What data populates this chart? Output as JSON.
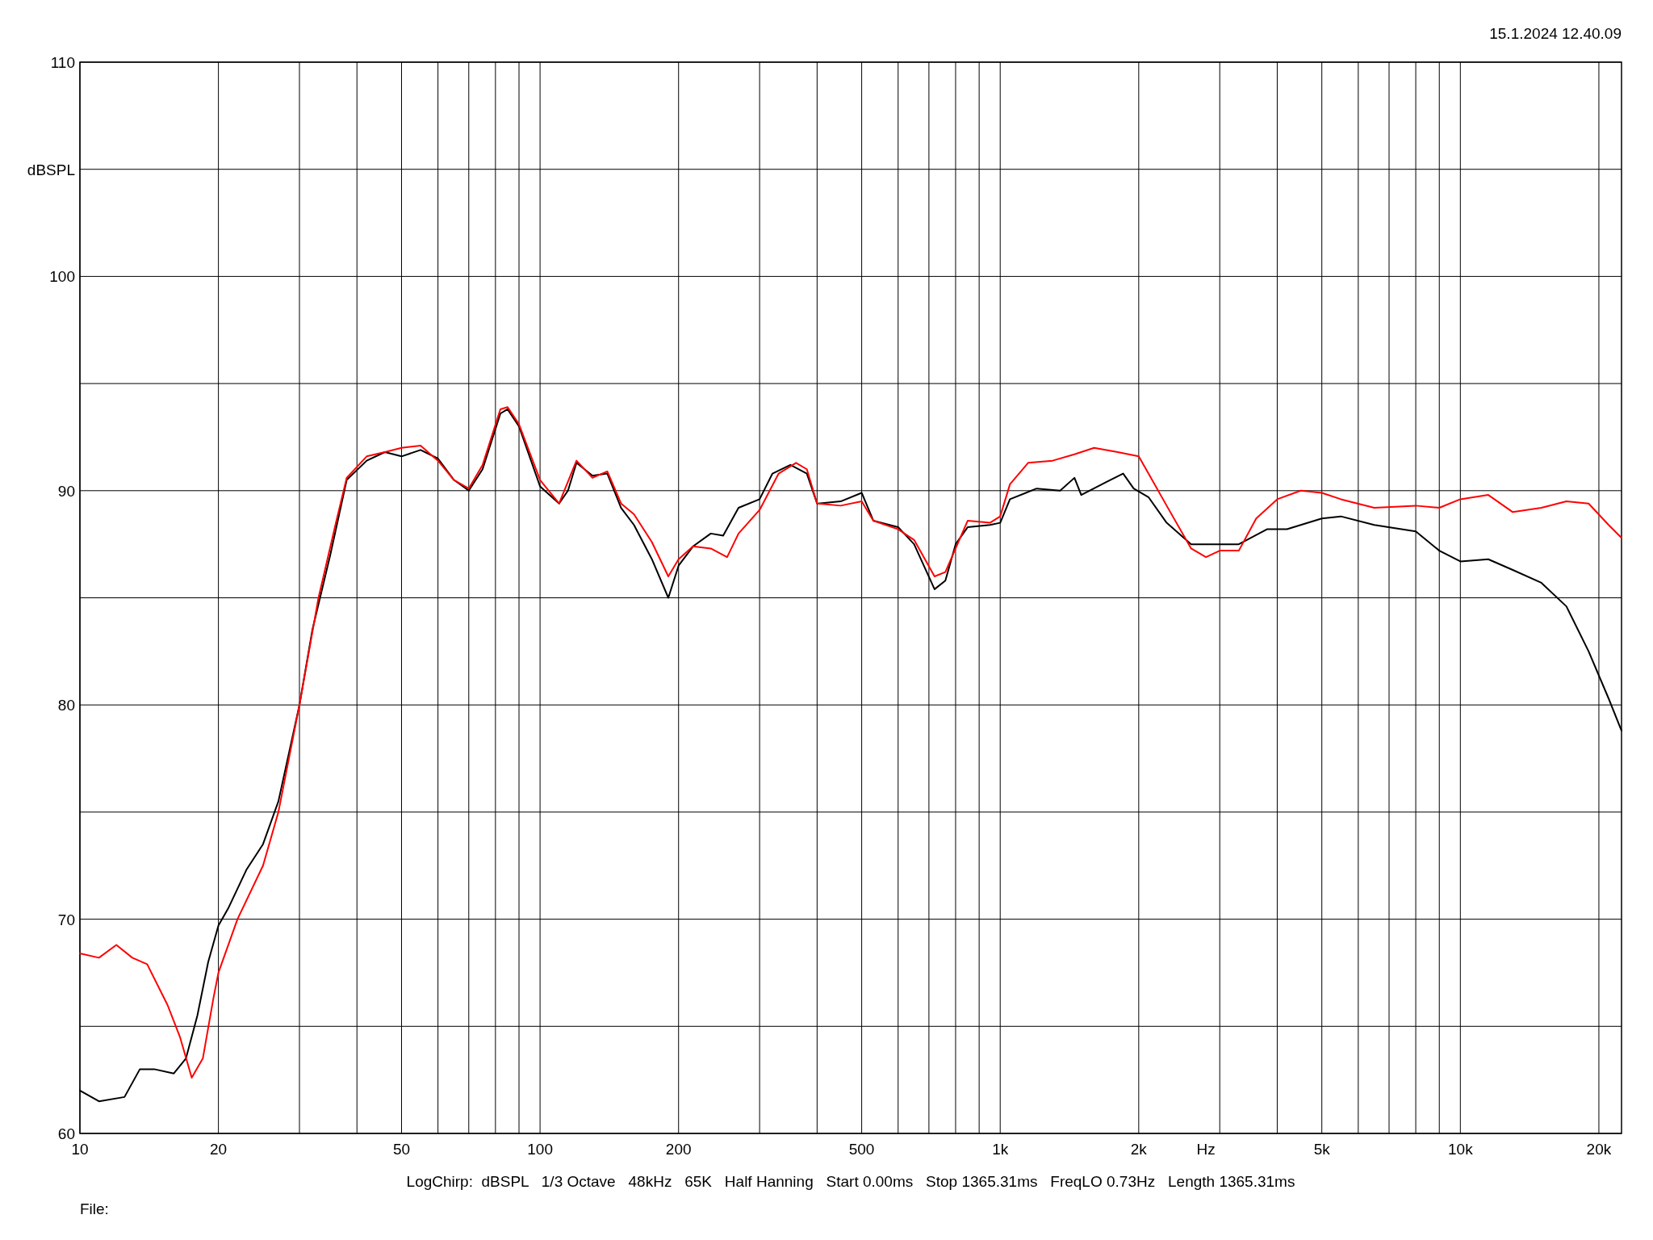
{
  "chart_data": {
    "type": "line",
    "xlabel": "Hz",
    "ylabel": "dBSPL",
    "log": "x",
    "xlim": [
      10,
      22400
    ],
    "ylim": [
      60,
      110
    ],
    "xticks": [
      10,
      {
        "value": 20,
        "label": "20"
      },
      {
        "value": 30,
        "label": null
      },
      {
        "value": 40,
        "label": null
      },
      50,
      {
        "value": 60,
        "label": null
      },
      {
        "value": 70,
        "label": null
      },
      {
        "value": 80,
        "label": null
      },
      {
        "value": 90,
        "label": null
      },
      100,
      200,
      {
        "value": 300,
        "label": null
      },
      {
        "value": 400,
        "label": null
      },
      500,
      {
        "value": 600,
        "label": null
      },
      {
        "value": 700,
        "label": null
      },
      {
        "value": 800,
        "label": null
      },
      {
        "value": 900,
        "label": null
      },
      {
        "value": 1000,
        "label": "1k"
      },
      {
        "value": 2000,
        "label": "2k"
      },
      {
        "value": 3000,
        "label": null
      },
      {
        "value": 4000,
        "label": null
      },
      {
        "value": 5000,
        "label": "5k"
      },
      {
        "value": 6000,
        "label": null
      },
      {
        "value": 7000,
        "label": null
      },
      {
        "value": 8000,
        "label": null
      },
      {
        "value": 9000,
        "label": null
      },
      {
        "value": 10000,
        "label": "10k"
      },
      {
        "value": 20000,
        "label": "20k"
      }
    ],
    "yticks": [
      60,
      {
        "value": 65,
        "label": null
      },
      70,
      {
        "value": 75,
        "label": null
      },
      80,
      {
        "value": 85,
        "label": null
      },
      90,
      {
        "value": 95,
        "label": null
      },
      100,
      {
        "value": 105,
        "label": null
      },
      110
    ],
    "grid": true,
    "line_style": "solid",
    "marker": "none",
    "annotations": [
      "15.1.2024 12.40.09",
      "LogChirp:  dBSPL   1/3 Octave   48kHz   65K   Half Hanning   Start 0.00ms   Stop 1365.31ms   FreqLO 0.73Hz   Length 1365.31ms",
      "File:"
    ],
    "series": [
      {
        "color": "#000000",
        "x": [
          10,
          11,
          12.5,
          13.5,
          14.5,
          16,
          17,
          18,
          19,
          20,
          21,
          23,
          25,
          27,
          30,
          32,
          35,
          38,
          42,
          46,
          50,
          55,
          60,
          65,
          70,
          75,
          82,
          85,
          90,
          100,
          110,
          115,
          120,
          130,
          140,
          150,
          160,
          175,
          190,
          200,
          215,
          235,
          250,
          270,
          300,
          320,
          350,
          380,
          400,
          450,
          500,
          530,
          600,
          650,
          720,
          760,
          800,
          850,
          950,
          1000,
          1050,
          1200,
          1350,
          1450,
          1500,
          1700,
          1850,
          1950,
          2100,
          2300,
          2600,
          3000,
          3300,
          3800,
          4200,
          5000,
          5500,
          6500,
          8000,
          9000,
          10000,
          11500,
          13000,
          15000,
          17000,
          19000,
          21000,
          22400
        ],
        "values": [
          62.0,
          61.5,
          61.7,
          63.0,
          63.0,
          62.8,
          63.5,
          65.5,
          68.0,
          69.7,
          70.5,
          72.3,
          73.5,
          75.5,
          80.0,
          83.5,
          87.0,
          90.5,
          91.4,
          91.8,
          91.6,
          91.9,
          91.5,
          90.5,
          90.0,
          91.0,
          93.6,
          93.8,
          93.0,
          90.2,
          89.4,
          90.0,
          91.3,
          90.7,
          90.8,
          89.2,
          88.4,
          86.8,
          85.0,
          86.5,
          87.4,
          88.0,
          87.9,
          89.2,
          89.6,
          90.8,
          91.2,
          90.8,
          89.4,
          89.5,
          89.9,
          88.6,
          88.3,
          87.5,
          85.4,
          85.8,
          87.5,
          88.3,
          88.4,
          88.5,
          89.6,
          90.1,
          90.0,
          90.6,
          89.8,
          90.4,
          90.8,
          90.1,
          89.7,
          88.5,
          87.5,
          87.5,
          87.5,
          88.2,
          88.2,
          88.7,
          88.8,
          88.4,
          88.1,
          87.2,
          86.7,
          86.8,
          86.3,
          85.7,
          84.6,
          82.5,
          80.3,
          78.8
        ]
      },
      {
        "color": "#ff0000",
        "x": [
          10,
          11,
          12,
          13,
          14,
          15.5,
          16.5,
          17.5,
          18.5,
          19.5,
          20,
          22,
          25,
          27,
          30,
          33,
          36,
          38,
          42,
          46,
          50,
          55,
          60,
          65,
          70,
          75,
          82,
          85,
          90,
          100,
          110,
          120,
          130,
          140,
          150,
          160,
          175,
          190,
          200,
          215,
          235,
          255,
          270,
          300,
          330,
          360,
          380,
          400,
          450,
          500,
          530,
          600,
          650,
          720,
          760,
          800,
          850,
          950,
          1000,
          1050,
          1150,
          1300,
          1450,
          1600,
          1800,
          2000,
          2100,
          2300,
          2600,
          2800,
          3000,
          3300,
          3600,
          4000,
          4500,
          5000,
          5500,
          6500,
          8000,
          9000,
          10000,
          11500,
          13000,
          15000,
          17000,
          19000,
          21000,
          22400
        ],
        "values": [
          68.4,
          68.2,
          68.8,
          68.2,
          67.9,
          66.0,
          64.5,
          62.6,
          63.5,
          66.3,
          67.5,
          70.0,
          72.5,
          75.0,
          80.0,
          85.0,
          88.5,
          90.6,
          91.6,
          91.8,
          92.0,
          92.1,
          91.4,
          90.5,
          90.1,
          91.2,
          93.8,
          93.9,
          93.1,
          90.5,
          89.4,
          91.4,
          90.6,
          90.9,
          89.4,
          88.9,
          87.6,
          86.0,
          86.8,
          87.4,
          87.3,
          86.9,
          88.0,
          89.1,
          90.8,
          91.3,
          91.0,
          89.4,
          89.3,
          89.5,
          88.6,
          88.2,
          87.7,
          86.0,
          86.2,
          87.3,
          88.6,
          88.5,
          88.8,
          90.3,
          91.3,
          91.4,
          91.7,
          92.0,
          91.8,
          91.6,
          90.8,
          89.3,
          87.3,
          86.9,
          87.2,
          87.2,
          88.7,
          89.6,
          90.0,
          89.9,
          89.6,
          89.2,
          89.3,
          89.2,
          89.6,
          89.8,
          89.0,
          89.2,
          89.5,
          89.4,
          88.4,
          87.8
        ]
      }
    ]
  }
}
